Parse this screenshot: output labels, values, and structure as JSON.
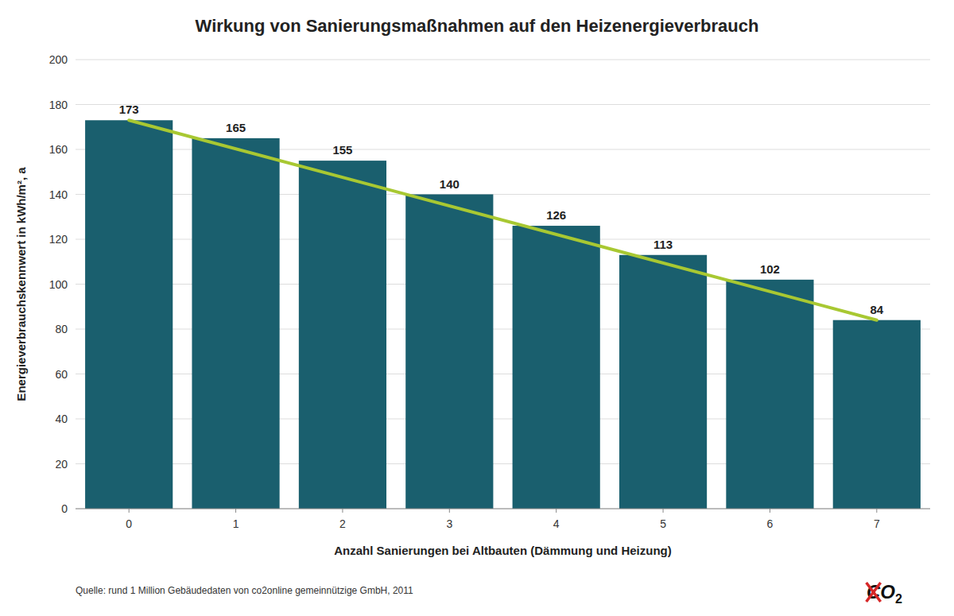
{
  "chart_data": {
    "type": "bar",
    "title": "Wirkung von Sanierungsmaßnahmen auf den Heizenergieverbrauch",
    "xlabel": "Anzahl Sanierungen bei Altbauten (Dämmung und Heizung)",
    "ylabel": "Energieverbrauchskennwert in kWh/m², a",
    "x": [
      0,
      1,
      2,
      3,
      4,
      5,
      6,
      7
    ],
    "series": [
      {
        "type": "bar",
        "color": "#1a5f6e",
        "values": [
          173,
          165,
          155,
          140,
          126,
          113,
          102,
          84
        ],
        "data_labels": true
      },
      {
        "type": "line",
        "color": "#a8c832",
        "x": [
          0,
          7
        ],
        "values": [
          173,
          84
        ]
      }
    ],
    "xlim": [
      -0.5,
      7.5
    ],
    "xticks": [
      0,
      1,
      2,
      3,
      4,
      5,
      6,
      7
    ],
    "ylim": [
      0,
      200
    ],
    "yticks": [
      0,
      20,
      40,
      60,
      80,
      100,
      120,
      140,
      160,
      180,
      200
    ],
    "grid": true,
    "annotations": [
      "Quelle: rund 1 Million Gebäudedaten von co2online gemeinnützige GmbH, 2011",
      "CO2"
    ]
  }
}
